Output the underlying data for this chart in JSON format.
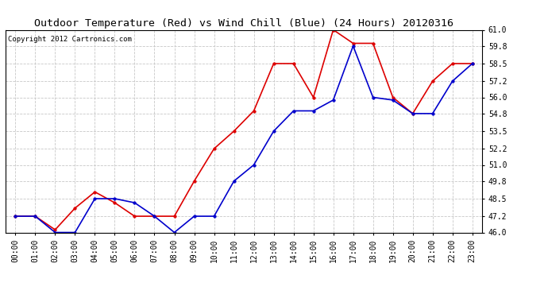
{
  "title": "Outdoor Temperature (Red) vs Wind Chill (Blue) (24 Hours) 20120316",
  "copyright": "Copyright 2012 Cartronics.com",
  "x_labels": [
    "00:00",
    "01:00",
    "02:00",
    "03:00",
    "04:00",
    "05:00",
    "06:00",
    "07:00",
    "08:00",
    "09:00",
    "10:00",
    "11:00",
    "12:00",
    "13:00",
    "14:00",
    "15:00",
    "16:00",
    "17:00",
    "18:00",
    "19:00",
    "20:00",
    "21:00",
    "22:00",
    "23:00"
  ],
  "red_data": [
    47.2,
    47.2,
    46.2,
    47.8,
    49.0,
    48.2,
    47.2,
    47.2,
    47.2,
    49.8,
    52.2,
    53.5,
    55.0,
    58.5,
    58.5,
    56.0,
    61.0,
    60.0,
    60.0,
    56.0,
    54.8,
    57.2,
    58.5,
    58.5
  ],
  "blue_data": [
    47.2,
    47.2,
    46.0,
    46.0,
    48.5,
    48.5,
    48.2,
    47.2,
    46.0,
    47.2,
    47.2,
    49.8,
    51.0,
    53.5,
    55.0,
    55.0,
    55.8,
    59.8,
    56.0,
    55.8,
    54.8,
    54.8,
    57.2,
    58.5
  ],
  "ylim": [
    46.0,
    61.0
  ],
  "yticks": [
    46.0,
    47.2,
    48.5,
    49.8,
    51.0,
    52.2,
    53.5,
    54.8,
    56.0,
    57.2,
    58.5,
    59.8,
    61.0
  ],
  "background_color": "#ffffff",
  "grid_color": "#c8c8c8",
  "red_color": "#dd0000",
  "blue_color": "#0000cc",
  "title_fontsize": 9.5,
  "copyright_fontsize": 6.5,
  "tick_fontsize": 7
}
